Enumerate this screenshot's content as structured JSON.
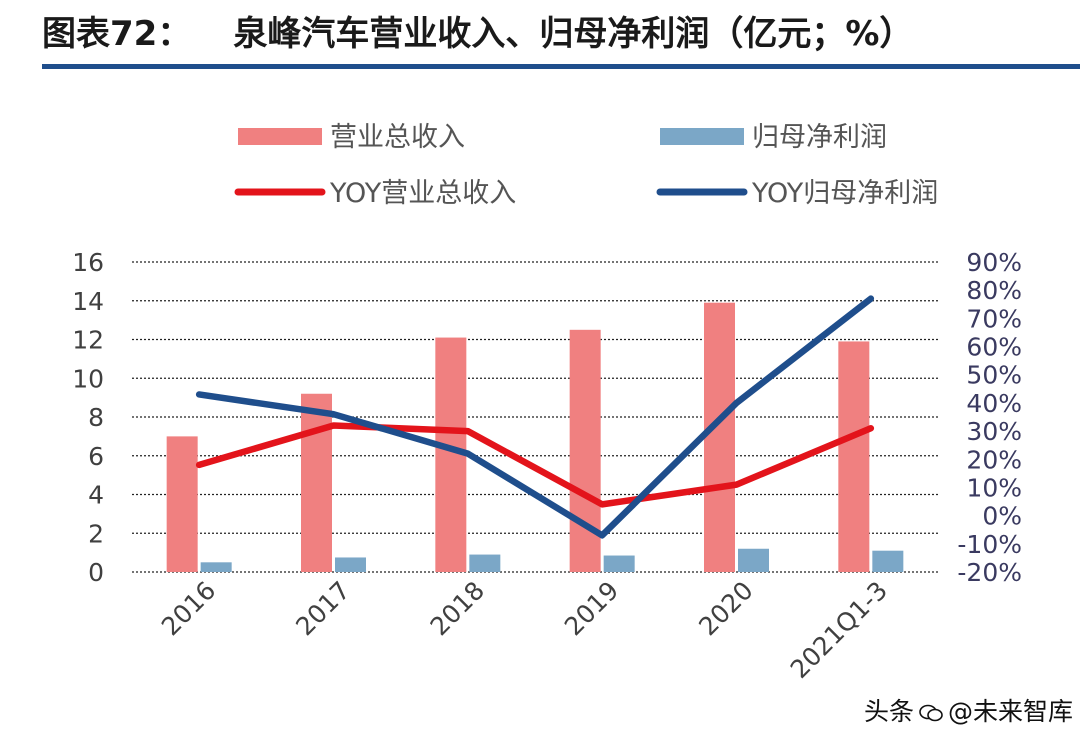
{
  "figure": {
    "label": "图表72：",
    "title": "泉峰汽车营业收入、归母净利润（亿元；%）"
  },
  "colors": {
    "revenue_bar": "#f08080",
    "profit_bar": "#7ba7c7",
    "yoy_revenue_line": "#e3141b",
    "yoy_profit_line": "#1f4e8c",
    "title_rule": "#1f4e8c"
  },
  "watermark": {
    "text_left": "头条",
    "text_right": "@未来智库"
  },
  "chart_data": {
    "type": "bar",
    "categories": [
      "2016",
      "2017",
      "2018",
      "2019",
      "2020",
      "2021Q1-3"
    ],
    "series": [
      {
        "name": "营业总收入",
        "kind": "bar",
        "axis": "left",
        "values": [
          7.0,
          9.2,
          12.1,
          12.5,
          13.9,
          11.9
        ]
      },
      {
        "name": "归母净利润",
        "kind": "bar",
        "axis": "left",
        "values": [
          0.5,
          0.75,
          0.9,
          0.85,
          1.2,
          1.1
        ]
      },
      {
        "name": "YOY营业总收入",
        "kind": "line",
        "axis": "right",
        "values": [
          18,
          32,
          30,
          4,
          11,
          31
        ]
      },
      {
        "name": "YOY归母净利润",
        "kind": "line",
        "axis": "right",
        "values": [
          43,
          36,
          22,
          -7,
          40,
          77
        ]
      }
    ],
    "legend": [
      "营业总收入",
      "归母净利润",
      "YOY营业总收入",
      "YOY归母净利润"
    ],
    "legend_position": "top",
    "y_left": {
      "min": 0,
      "max": 16,
      "ticks": [
        "0",
        "2",
        "4",
        "6",
        "8",
        "10",
        "12",
        "14",
        "16"
      ]
    },
    "y_right": {
      "min": -20,
      "max": 90,
      "ticks": [
        "-20%",
        "-10%",
        "0%",
        "10%",
        "20%",
        "30%",
        "40%",
        "50%",
        "60%",
        "70%",
        "80%",
        "90%"
      ]
    },
    "grid": "dotted"
  }
}
